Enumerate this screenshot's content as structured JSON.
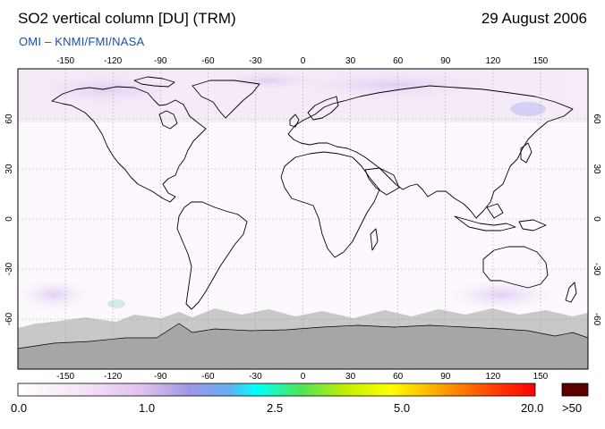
{
  "header": {
    "title": "SO2 vertical column [DU] (TRM)",
    "date": "29 August 2006",
    "source": "OMI  –  KNMI/FMI/NASA"
  },
  "map": {
    "lon_ticks": [
      "-150",
      "-120",
      "-90",
      "-60",
      "-30",
      "0",
      "30",
      "60",
      "90",
      "120",
      "150"
    ],
    "lat_ticks": [
      "60",
      "30",
      "0",
      "-30",
      "-60"
    ],
    "lon_range": [
      -180,
      180
    ],
    "lat_range": [
      -90,
      90
    ],
    "gridlines": true,
    "land_outline_color": "#000000",
    "no_data_color": "#c8c8c8",
    "antarctica_color": "#a6a6a6"
  },
  "colorbar": {
    "labels": [
      "0.0",
      "1.0",
      "2.5",
      "5.0",
      "20.0",
      ">50"
    ],
    "colors": [
      "#ffffff",
      "#f0d2f0",
      "#a096e6",
      "#00ffff",
      "#50e650",
      "#ffff00",
      "#ff8c00",
      "#ff0000",
      "#5a0000"
    ]
  }
}
